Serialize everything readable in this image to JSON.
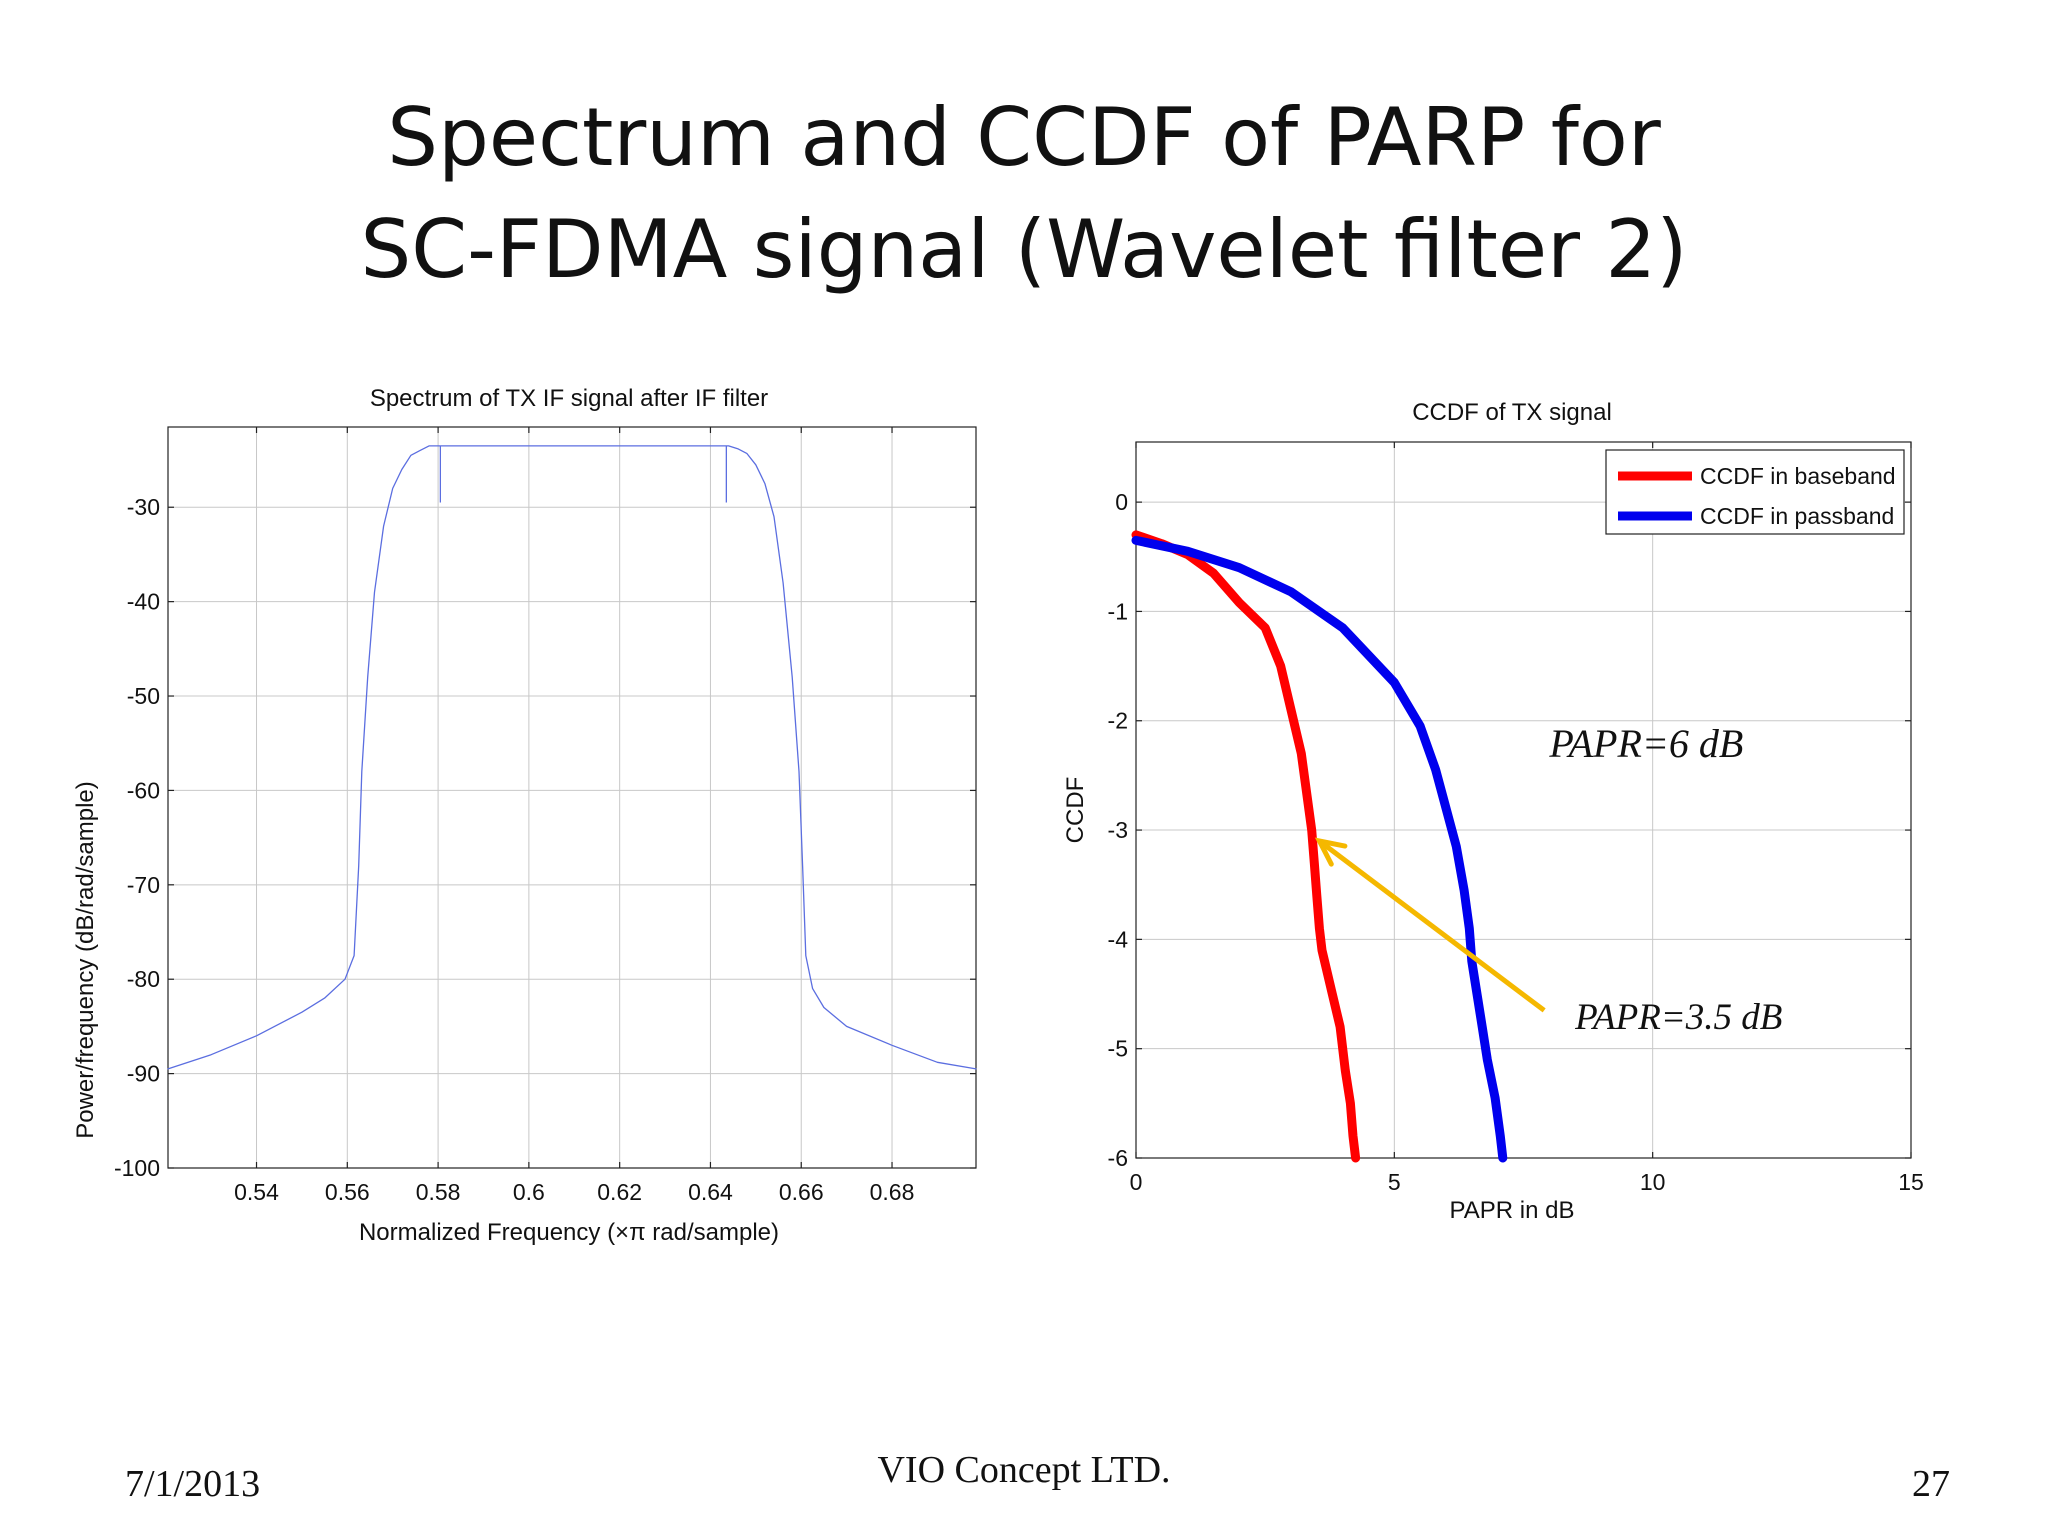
{
  "slide": {
    "title_line1": "Spectrum and CCDF of PARP for",
    "title_line2": "SC-FDMA signal (Wavelet filter 2)",
    "footer_date": "7/1/2013",
    "footer_company": "VIO Concept LTD.",
    "footer_page": "27"
  },
  "colors": {
    "spectrum_line": "#5b6ee0",
    "baseband": "#ff0000",
    "passband": "#0000ee",
    "arrow": "#f5b800",
    "grid": "#c8c8c8"
  },
  "chart_data": [
    {
      "type": "line",
      "title": "Spectrum of TX IF signal after IF filter",
      "xlabel": "Normalized Frequency  (×π rad/sample)",
      "ylabel": "Power/frequency  (dB/rad/sample)",
      "xlim": [
        0.5205,
        0.6985
      ],
      "ylim": [
        -100,
        -21.5
      ],
      "xticks": [
        0.54,
        0.56,
        0.58,
        0.6,
        0.62,
        0.64,
        0.66,
        0.68
      ],
      "xtick_labels": [
        "0.54",
        "0.56",
        "0.58",
        "0.6",
        "0.62",
        "0.64",
        "0.66",
        "0.68"
      ],
      "yticks": [
        -30,
        -40,
        -50,
        -60,
        -70,
        -80,
        -90,
        -100
      ],
      "ytick_labels": [
        "-30",
        "-40",
        "-50",
        "-60",
        "-70",
        "-80",
        "-90",
        "-100"
      ],
      "grid": true,
      "series": [
        {
          "x": [
            0.5205,
            0.53,
            0.54,
            0.55,
            0.555,
            0.5595,
            0.5615,
            0.5625,
            0.5632,
            0.5645,
            0.566,
            0.568,
            0.57,
            0.572,
            0.574,
            0.576,
            0.578,
            0.58,
            0.582,
            0.59,
            0.6,
            0.61,
            0.62,
            0.63,
            0.64,
            0.642,
            0.644,
            0.646,
            0.648,
            0.65,
            0.652,
            0.654,
            0.656,
            0.658,
            0.6595,
            0.6603,
            0.661,
            0.6625,
            0.665,
            0.67,
            0.68,
            0.69,
            0.6985
          ],
          "y": [
            -89.5,
            -88,
            -86,
            -83.5,
            -82,
            -80,
            -77.5,
            -68,
            -58,
            -48,
            -39,
            -32,
            -28,
            -26,
            -24.5,
            -24,
            -23.5,
            -23.5,
            -23.5,
            -23.5,
            -23.5,
            -23.5,
            -23.5,
            -23.5,
            -23.5,
            -23.5,
            -23.5,
            -23.8,
            -24.3,
            -25.5,
            -27.5,
            -31,
            -38,
            -48,
            -58,
            -68,
            -77.5,
            -81,
            -83,
            -85,
            -87,
            -88.8,
            -89.5
          ]
        }
      ]
    },
    {
      "type": "line",
      "title": "CCDF of TX signal",
      "xlabel": "PAPR in dB",
      "ylabel": "CCDF",
      "xlim": [
        0,
        15
      ],
      "ylim": [
        -6,
        0.55
      ],
      "xticks": [
        0,
        5,
        10,
        15
      ],
      "xtick_labels": [
        "0",
        "5",
        "10",
        "15"
      ],
      "yticks": [
        0,
        -1,
        -2,
        -3,
        -4,
        -5,
        -6
      ],
      "ytick_labels": [
        "0",
        "-1",
        "-2",
        "-3",
        "-4",
        "-5",
        "-6"
      ],
      "grid": true,
      "legend_position": "top-right",
      "series": [
        {
          "name": "CCDF in baseband",
          "x": [
            0,
            0.5,
            1.0,
            1.5,
            2.0,
            2.5,
            2.8,
            3.0,
            3.2,
            3.3,
            3.4,
            3.45,
            3.5,
            3.55,
            3.6,
            3.8,
            3.95,
            4.05,
            4.15,
            4.2,
            4.25
          ],
          "y": [
            -0.3,
            -0.38,
            -0.48,
            -0.65,
            -0.92,
            -1.15,
            -1.5,
            -1.9,
            -2.3,
            -2.65,
            -3.0,
            -3.3,
            -3.6,
            -3.9,
            -4.1,
            -4.5,
            -4.8,
            -5.2,
            -5.5,
            -5.8,
            -6.0
          ]
        },
        {
          "name": "CCDF in passband",
          "x": [
            0,
            1.0,
            2.0,
            3.0,
            4.0,
            5.0,
            5.5,
            5.8,
            6.0,
            6.2,
            6.35,
            6.45,
            6.5,
            6.6,
            6.7,
            6.8,
            6.95,
            7.05,
            7.1
          ],
          "y": [
            -0.35,
            -0.45,
            -0.6,
            -0.82,
            -1.15,
            -1.65,
            -2.05,
            -2.45,
            -2.8,
            -3.15,
            -3.55,
            -3.9,
            -4.2,
            -4.5,
            -4.8,
            -5.1,
            -5.45,
            -5.8,
            -6.0
          ]
        }
      ],
      "annotations": [
        {
          "text": "PAPR=6 dB",
          "x": 8.0,
          "y": -2.33
        },
        {
          "text": "PAPR=3.5 dB",
          "x": 8.5,
          "y": -4.82
        },
        {
          "type": "arrow",
          "from": [
            7.9,
            -4.65
          ],
          "to": [
            3.55,
            -3.1
          ]
        }
      ]
    }
  ]
}
